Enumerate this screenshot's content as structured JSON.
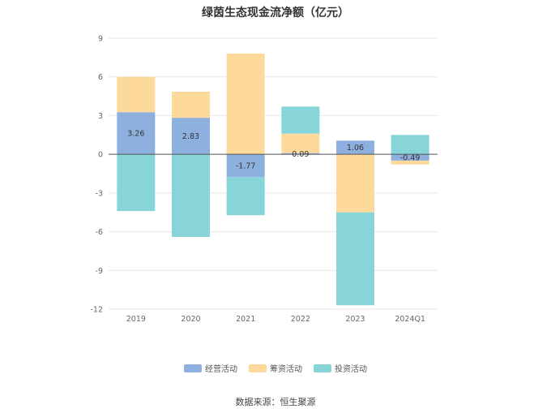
{
  "chart_data": {
    "type": "bar",
    "stacked": true,
    "title": "绿茵生态现金流净额（亿元）",
    "categories": [
      "2019",
      "2020",
      "2021",
      "2022",
      "2023",
      "2024Q1"
    ],
    "series": [
      {
        "name": "经营活动",
        "color": "#8eb0de",
        "values": [
          3.26,
          2.83,
          -1.77,
          0.09,
          1.06,
          -0.49
        ]
      },
      {
        "name": "筹资活动",
        "color": "#fdd99b",
        "values": [
          2.74,
          2.02,
          7.8,
          1.51,
          -4.5,
          -0.3
        ]
      },
      {
        "name": "投资活动",
        "color": "#87d5d9",
        "values": [
          -4.4,
          -6.4,
          -2.95,
          2.1,
          -7.2,
          1.5
        ]
      }
    ],
    "data_labels": [
      "3.26",
      "2.83",
      "-1.77",
      "0.09",
      "1.06",
      "-0.49"
    ],
    "yticks": [
      9,
      6,
      3,
      0,
      -3,
      -6,
      -9,
      -12
    ],
    "ylim": [
      -12,
      9
    ],
    "grid": true,
    "legend_position": "bottom"
  },
  "source": "数据来源：恒生聚源"
}
